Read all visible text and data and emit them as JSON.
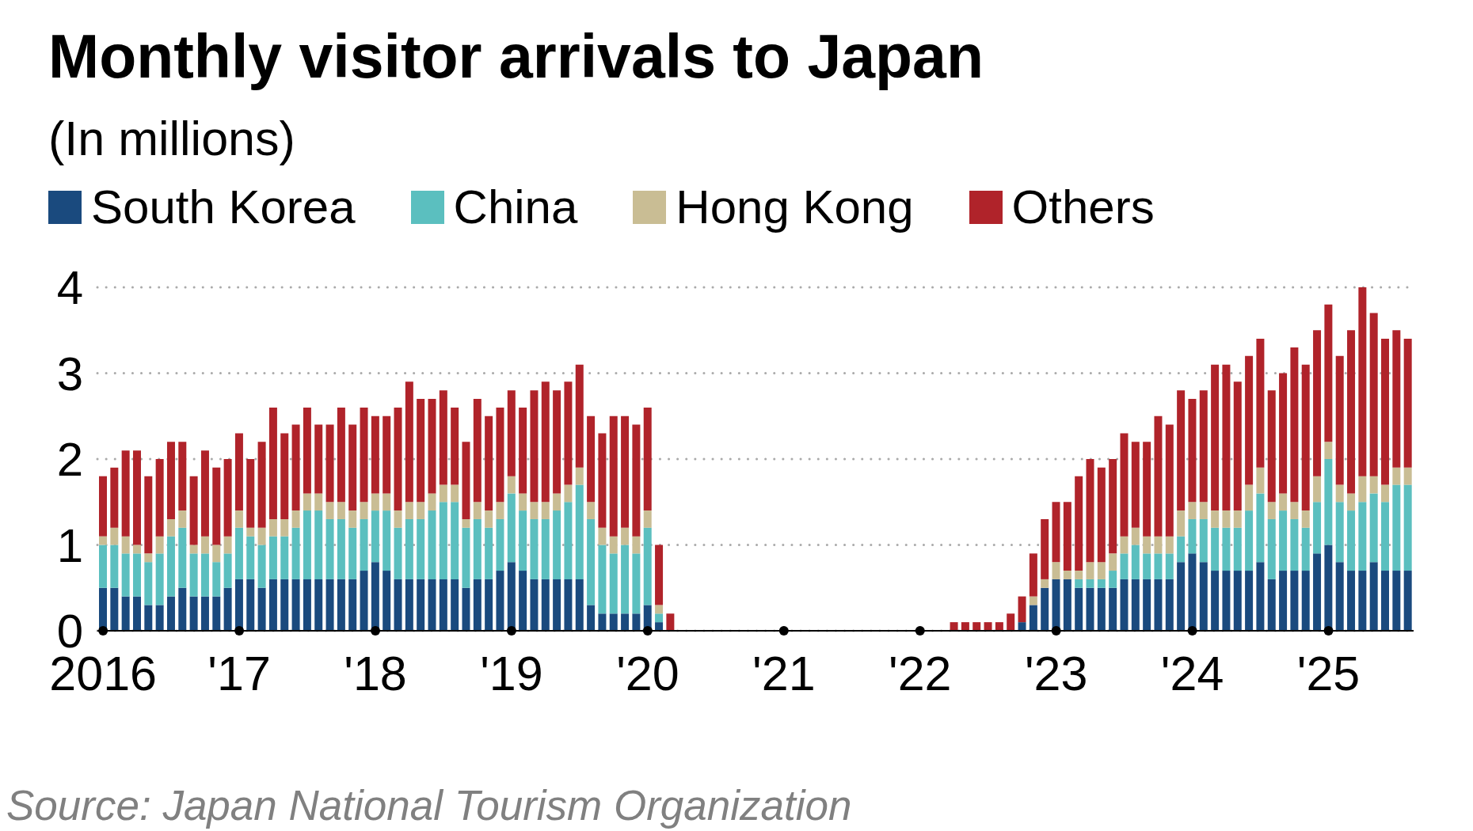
{
  "chart_data": {
    "type": "bar",
    "title": "Monthly visitor arrivals to Japan",
    "subtitle": "(In millions)",
    "annotations": [
      "Source: Japan National Tourism Organization"
    ],
    "categories": [
      "2016",
      null,
      null,
      null,
      null,
      null,
      null,
      null,
      null,
      null,
      null,
      null,
      "'17",
      null,
      null,
      null,
      null,
      null,
      null,
      null,
      null,
      null,
      null,
      null,
      "'18",
      null,
      null,
      null,
      null,
      null,
      null,
      null,
      null,
      null,
      null,
      null,
      "'19",
      null,
      null,
      null,
      null,
      null,
      null,
      null,
      null,
      null,
      null,
      null,
      "'20",
      null,
      null,
      null,
      null,
      null,
      null,
      null,
      null,
      null,
      null,
      null,
      "'21",
      null,
      null,
      null,
      null,
      null,
      null,
      null,
      null,
      null,
      null,
      null,
      "'22",
      null,
      null,
      null,
      null,
      null,
      null,
      null,
      null,
      null,
      null,
      null,
      "'23",
      null,
      null,
      null,
      null,
      null,
      null,
      null,
      null,
      null,
      null,
      null,
      "'24",
      null,
      null,
      null,
      null,
      null,
      null,
      null,
      null,
      null,
      null,
      null,
      "'25",
      null,
      null,
      null,
      null,
      null,
      null,
      null
    ],
    "stacked": true,
    "series": [
      {
        "name": "South Korea",
        "color": "#1a4a7e",
        "values": [
          0.5,
          0.5,
          0.4,
          0.4,
          0.3,
          0.3,
          0.4,
          0.5,
          0.4,
          0.4,
          0.4,
          0.5,
          0.6,
          0.6,
          0.5,
          0.6,
          0.6,
          0.6,
          0.6,
          0.6,
          0.6,
          0.6,
          0.6,
          0.7,
          0.8,
          0.7,
          0.6,
          0.6,
          0.6,
          0.6,
          0.6,
          0.6,
          0.5,
          0.6,
          0.6,
          0.7,
          0.8,
          0.7,
          0.6,
          0.6,
          0.6,
          0.6,
          0.6,
          0.3,
          0.2,
          0.2,
          0.2,
          0.2,
          0.3,
          0.1,
          0,
          0,
          0,
          0,
          0,
          0,
          0,
          0,
          0,
          0,
          0,
          0,
          0,
          0,
          0,
          0,
          0,
          0,
          0,
          0,
          0,
          0,
          0,
          0,
          0,
          0,
          0,
          0,
          0,
          0,
          0,
          0.1,
          0.3,
          0.5,
          0.6,
          0.6,
          0.5,
          0.5,
          0.5,
          0.5,
          0.6,
          0.6,
          0.6,
          0.6,
          0.6,
          0.8,
          0.9,
          0.8,
          0.7,
          0.7,
          0.7,
          0.7,
          0.8,
          0.6,
          0.7,
          0.7,
          0.7,
          0.9,
          1.0,
          0.8,
          0.7,
          0.7,
          0.8,
          0.7,
          0.7,
          0.7
        ]
      },
      {
        "name": "China",
        "color": "#5bbfbf",
        "values": [
          0.5,
          0.5,
          0.5,
          0.5,
          0.5,
          0.6,
          0.7,
          0.7,
          0.5,
          0.5,
          0.4,
          0.4,
          0.6,
          0.5,
          0.5,
          0.5,
          0.5,
          0.6,
          0.8,
          0.8,
          0.7,
          0.7,
          0.6,
          0.6,
          0.6,
          0.7,
          0.6,
          0.7,
          0.7,
          0.8,
          0.9,
          0.9,
          0.7,
          0.7,
          0.6,
          0.6,
          0.8,
          0.7,
          0.7,
          0.7,
          0.8,
          0.9,
          1.1,
          1.0,
          0.8,
          0.7,
          0.8,
          0.7,
          0.9,
          0.1,
          0,
          0,
          0,
          0,
          0,
          0,
          0,
          0,
          0,
          0,
          0,
          0,
          0,
          0,
          0,
          0,
          0,
          0,
          0,
          0,
          0,
          0,
          0,
          0,
          0,
          0,
          0,
          0,
          0,
          0,
          0,
          0,
          0,
          0,
          0,
          0,
          0.1,
          0.1,
          0.1,
          0.2,
          0.3,
          0.4,
          0.3,
          0.3,
          0.3,
          0.3,
          0.4,
          0.5,
          0.5,
          0.5,
          0.5,
          0.7,
          0.8,
          0.7,
          0.7,
          0.6,
          0.5,
          0.6,
          1.0,
          0.7,
          0.7,
          0.8,
          0.8,
          0.8,
          1.0,
          1.0
        ]
      },
      {
        "name": "Hong Kong",
        "color": "#c9bd94",
        "values": [
          0.1,
          0.2,
          0.2,
          0.1,
          0.1,
          0.2,
          0.2,
          0.2,
          0.1,
          0.2,
          0.2,
          0.2,
          0.2,
          0.1,
          0.2,
          0.2,
          0.2,
          0.2,
          0.2,
          0.2,
          0.2,
          0.2,
          0.2,
          0.2,
          0.2,
          0.2,
          0.2,
          0.2,
          0.2,
          0.2,
          0.2,
          0.2,
          0.1,
          0.2,
          0.2,
          0.2,
          0.2,
          0.2,
          0.2,
          0.2,
          0.2,
          0.2,
          0.2,
          0.2,
          0.2,
          0.2,
          0.2,
          0.2,
          0.2,
          0.1,
          0,
          0,
          0,
          0,
          0,
          0,
          0,
          0,
          0,
          0,
          0,
          0,
          0,
          0,
          0,
          0,
          0,
          0,
          0,
          0,
          0,
          0,
          0,
          0,
          0,
          0,
          0,
          0,
          0,
          0,
          0,
          0,
          0.1,
          0.1,
          0.2,
          0.1,
          0.1,
          0.2,
          0.2,
          0.2,
          0.2,
          0.2,
          0.2,
          0.2,
          0.2,
          0.3,
          0.2,
          0.2,
          0.2,
          0.2,
          0.2,
          0.3,
          0.3,
          0.2,
          0.2,
          0.2,
          0.2,
          0.3,
          0.2,
          0.2,
          0.2,
          0.3,
          0.2,
          0.2,
          0.2,
          0.2
        ]
      },
      {
        "name": "Others",
        "color": "#b0232a",
        "values": [
          0.7,
          0.7,
          1.0,
          1.1,
          0.9,
          0.9,
          0.9,
          0.8,
          0.8,
          1.0,
          0.9,
          0.9,
          0.9,
          0.8,
          1.0,
          1.3,
          1.0,
          1.0,
          1.0,
          0.8,
          0.9,
          1.1,
          1.0,
          1.1,
          0.9,
          0.9,
          1.2,
          1.4,
          1.2,
          1.1,
          1.1,
          0.9,
          0.9,
          1.2,
          1.1,
          1.1,
          1.0,
          1.0,
          1.3,
          1.4,
          1.2,
          1.2,
          1.2,
          1.0,
          1.1,
          1.4,
          1.3,
          1.3,
          1.2,
          0.7,
          0.2,
          0,
          0,
          0,
          0,
          0,
          0,
          0,
          0,
          0,
          0,
          0,
          0,
          0,
          0,
          0,
          0,
          0,
          0,
          0,
          0,
          0,
          0,
          0,
          0,
          0.1,
          0.1,
          0.1,
          0.1,
          0.1,
          0.2,
          0.3,
          0.5,
          0.7,
          0.7,
          0.8,
          1.1,
          1.2,
          1.1,
          1.1,
          1.2,
          1.0,
          1.1,
          1.4,
          1.3,
          1.4,
          1.2,
          1.3,
          1.7,
          1.7,
          1.5,
          1.5,
          1.5,
          1.3,
          1.4,
          1.8,
          1.7,
          1.7,
          1.6,
          1.5,
          1.9,
          2.2,
          1.9,
          1.7,
          1.6,
          1.5
        ]
      }
    ],
    "ylim": [
      0,
      4
    ],
    "yticks": [
      0,
      1,
      2,
      3,
      4
    ],
    "grid": "y",
    "legend": "top left"
  }
}
